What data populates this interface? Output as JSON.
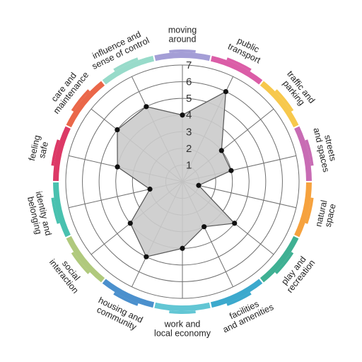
{
  "chart_data": {
    "type": "radar",
    "title": "",
    "categories": [
      [
        "moving",
        "around"
      ],
      [
        "public",
        "transport"
      ],
      [
        "traffic and",
        "parking"
      ],
      [
        "streets",
        "and spaces"
      ],
      [
        "natural",
        "space"
      ],
      [
        "play and",
        "recreation"
      ],
      [
        "facilities",
        "and amenities"
      ],
      [
        "work and",
        "local economy"
      ],
      [
        "housing and",
        "community"
      ],
      [
        "social",
        "interaction"
      ],
      [
        "identity and",
        "belonging"
      ],
      [
        "feeling",
        "safe"
      ],
      [
        "care and",
        "maintenance"
      ],
      [
        "influence and",
        "sense of control"
      ]
    ],
    "values": [
      4,
      6,
      3,
      3,
      1,
      4,
      3,
      4,
      5,
      4,
      2,
      4,
      5,
      5
    ],
    "rlim": [
      0,
      7
    ],
    "ticks": [
      1,
      2,
      3,
      4,
      5,
      6,
      7
    ],
    "grid": true,
    "colors": {
      "fill": "#cbcbcb",
      "stroke": "#555555",
      "grid": "#6e6e6e",
      "segments": [
        "#9c96d2",
        "#d84fa0",
        "#f6c33d",
        "#c35fae",
        "#f59a2e",
        "#2fa98a",
        "#2ba2c9",
        "#55c1d0",
        "#3c87c9",
        "#a9c472",
        "#39bca8",
        "#d92859",
        "#e85a3a",
        "#8fd8c6"
      ]
    }
  }
}
